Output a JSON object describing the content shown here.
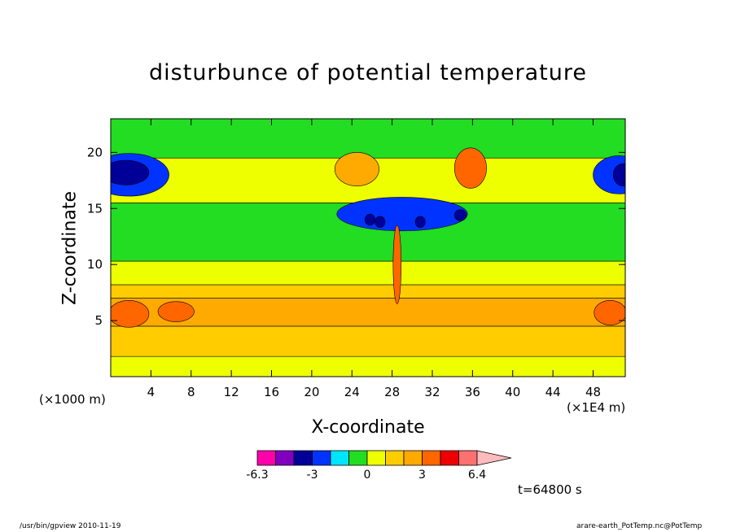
{
  "chart_data": {
    "type": "heatmap",
    "title": "disturbunce of potential temperature",
    "xlabel": "X-coordinate",
    "ylabel": "Z-coordinate",
    "x_unit": "(×1E4 m)",
    "y_unit": "(×1000 m)",
    "xlim": [
      0,
      51.2
    ],
    "ylim": [
      0,
      23
    ],
    "x_ticks": [
      4,
      8,
      12,
      16,
      20,
      24,
      28,
      32,
      36,
      40,
      44,
      48
    ],
    "y_ticks": [
      5,
      10,
      15,
      20
    ],
    "colorbar": {
      "levels": [
        -6.3,
        -5.2,
        -4.1,
        -3,
        -2,
        -1,
        0,
        1,
        2,
        3,
        4,
        5,
        6.4
      ],
      "tick_labels": [
        "-6.3",
        "-3",
        "0",
        "3",
        "6.4"
      ],
      "colors": [
        "#ff00aa",
        "#8000c0",
        "#000099",
        "#0033ff",
        "#00e5ff",
        "#22dd22",
        "#eeff00",
        "#ffcc00",
        "#ffaa00",
        "#ff6600",
        "#ee0000",
        "#ff7070",
        "#ffbbbb"
      ]
    },
    "bands": [
      {
        "z_range": [
          0,
          1.8
        ],
        "value": 0.5
      },
      {
        "z_range": [
          1.8,
          4.5
        ],
        "value": 1.5
      },
      {
        "z_range": [
          4.5,
          7.0
        ],
        "value": 2.5
      },
      {
        "z_range": [
          7.0,
          8.2
        ],
        "value": 1.5
      },
      {
        "z_range": [
          8.2,
          10.3
        ],
        "value": 0.5
      },
      {
        "z_range": [
          10.3,
          15.5
        ],
        "value": -0.5
      },
      {
        "z_range": [
          15.5,
          19.5
        ],
        "value": 0.5
      },
      {
        "z_range": [
          19.5,
          23
        ],
        "value": -0.5
      }
    ],
    "features": [
      {
        "x": 1.8,
        "z": 18.0,
        "rx": 4.0,
        "rz": 1.9,
        "value": -2.5
      },
      {
        "x": 1.5,
        "z": 18.2,
        "rx": 2.3,
        "rz": 1.1,
        "value": -3.5
      },
      {
        "x": 50.6,
        "z": 18.0,
        "rx": 2.6,
        "rz": 1.7,
        "value": -2.5
      },
      {
        "x": 51.0,
        "z": 18.0,
        "rx": 1.0,
        "rz": 1.0,
        "value": -3.5
      },
      {
        "x": 1.8,
        "z": 5.6,
        "rx": 2.0,
        "rz": 1.2,
        "value": 3.5
      },
      {
        "x": 6.5,
        "z": 5.8,
        "rx": 1.8,
        "rz": 0.9,
        "value": 3.5
      },
      {
        "x": 49.7,
        "z": 5.7,
        "rx": 1.6,
        "rz": 1.1,
        "value": 3.5
      },
      {
        "x": 29.0,
        "z": 14.5,
        "rx": 6.5,
        "rz": 1.5,
        "value": -2.5
      },
      {
        "x": 25.8,
        "z": 14.0,
        "rx": 0.5,
        "rz": 0.5,
        "value": -3.5
      },
      {
        "x": 26.8,
        "z": 13.8,
        "rx": 0.5,
        "rz": 0.5,
        "value": -3.5
      },
      {
        "x": 34.8,
        "z": 14.4,
        "rx": 0.6,
        "rz": 0.5,
        "value": -3.5
      },
      {
        "x": 30.8,
        "z": 13.8,
        "rx": 0.5,
        "rz": 0.5,
        "value": -3.5
      },
      {
        "x": 24.5,
        "z": 18.5,
        "rx": 2.2,
        "rz": 1.5,
        "value": 2.5
      },
      {
        "x": 35.8,
        "z": 18.6,
        "rx": 1.6,
        "rz": 1.8,
        "value": 3.5
      },
      {
        "x": 28.5,
        "z": 10.0,
        "rx": 0.4,
        "rz": 3.5,
        "value": 3.5
      }
    ]
  },
  "footer": {
    "left": "/usr/bin/gpview   2010-11-19",
    "right": "arare-earth_PotTemp.nc@PotTemp"
  },
  "time_label": "t=64800 s"
}
